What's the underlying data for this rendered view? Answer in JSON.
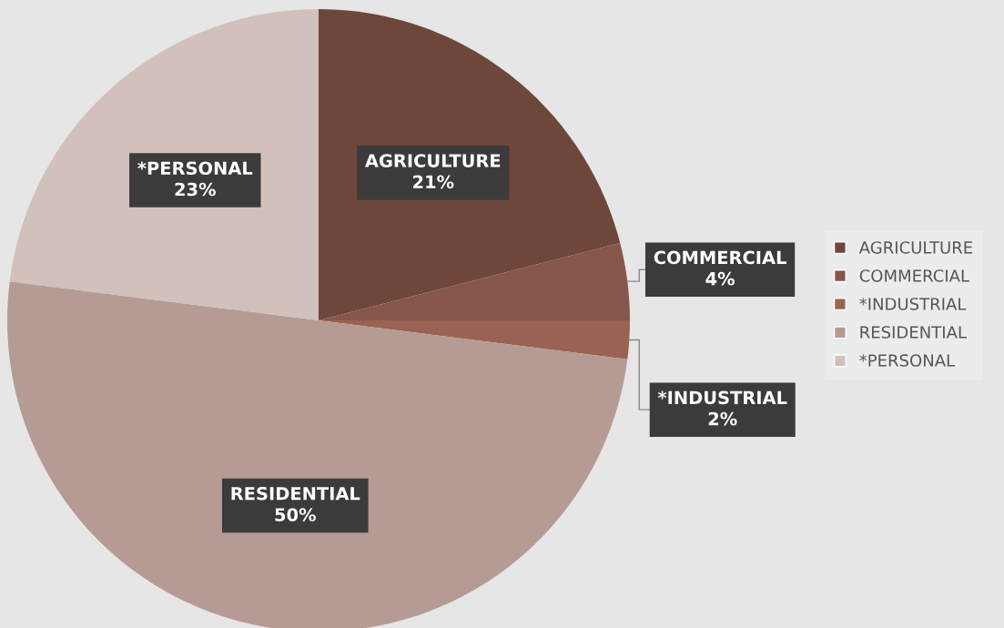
{
  "chart_data": {
    "type": "pie",
    "categories": [
      "AGRICULTURE",
      "COMMERCIAL",
      "*INDUSTRIAL",
      "RESIDENTIAL",
      "*PERSONAL"
    ],
    "values": [
      21,
      4,
      2,
      50,
      23
    ],
    "value_labels": [
      "21%",
      "4%",
      "2%",
      "50%",
      "23%"
    ],
    "colors": [
      "#6e473b",
      "#86574a",
      "#9a6252",
      "#b59b94",
      "#d1c0bb"
    ],
    "legend": "right"
  }
}
